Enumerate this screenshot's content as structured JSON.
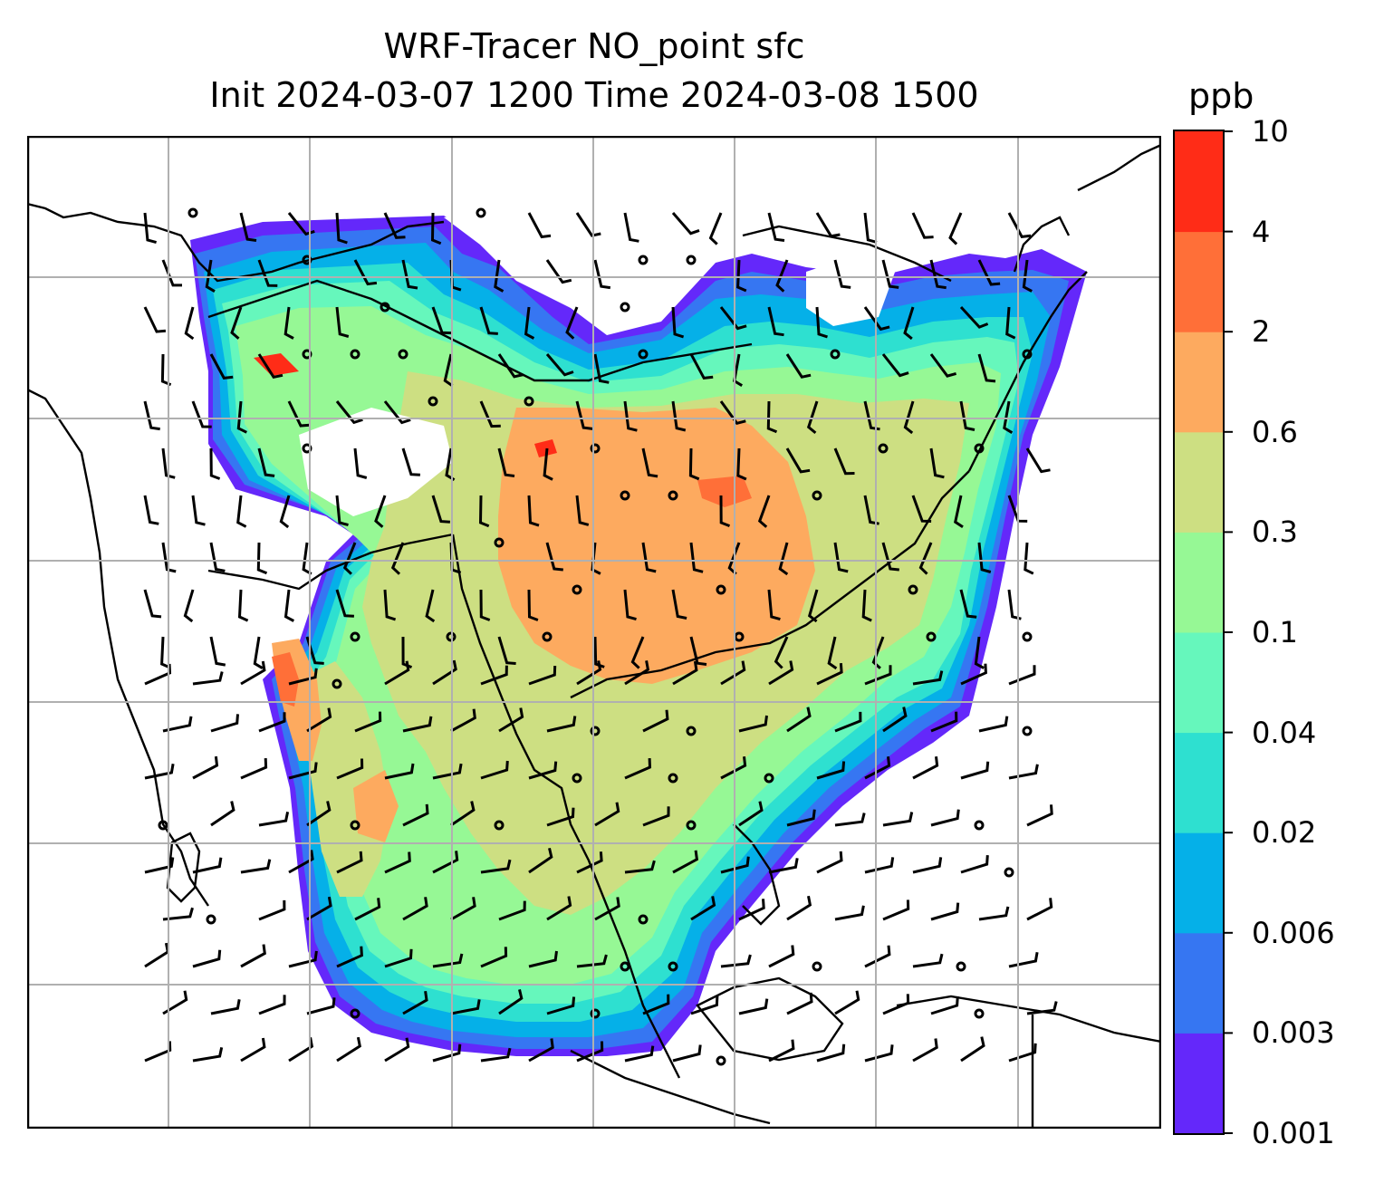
{
  "title": {
    "line1": "WRF-Tracer NO_point sfc",
    "line2": "Init 2024-03-07 1200 Time 2024-03-08 1500"
  },
  "colorbar": {
    "unit": "ppb",
    "ticks": [
      "10",
      "4",
      "2",
      "0.6",
      "0.3",
      "0.1",
      "0.04",
      "0.02",
      "0.006",
      "0.003",
      "0.001"
    ],
    "levels_bottom_to_top": [
      0.001,
      0.003,
      0.006,
      0.02,
      0.04,
      0.1,
      0.3,
      0.6,
      2,
      4,
      10
    ],
    "colors_bottom_to_top": [
      "#6428fa",
      "#3676f2",
      "#05b0e8",
      "#2ee0d0",
      "#66f7bc",
      "#96f895",
      "#cddf82",
      "#fdaa5f",
      "#ff6f38",
      "#ff2c17"
    ]
  },
  "map": {
    "field": "NO_point",
    "level": "sfc",
    "wind_barbs": true,
    "coastlines": true,
    "gridlines": true,
    "gridline_color": "#b0b0b0"
  }
}
